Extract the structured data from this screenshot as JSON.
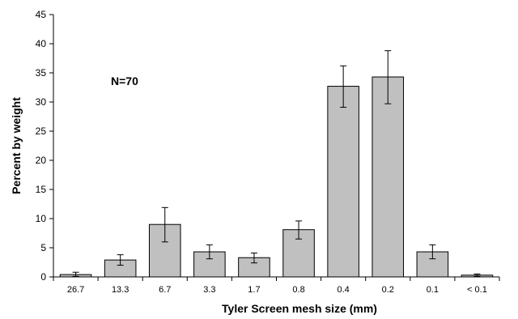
{
  "chart_data": {
    "type": "bar",
    "xlabel": "Tyler Screen mesh size (mm)",
    "ylabel": "Percent by weight",
    "annotation": "N=70",
    "ylim": [
      0,
      45
    ],
    "yticks": [
      0,
      5,
      10,
      15,
      20,
      25,
      30,
      35,
      40,
      45
    ],
    "grid": false,
    "legend": "none",
    "categories": [
      "26.7",
      "13.3",
      "6.7",
      "3.3",
      "1.7",
      "0.8",
      "0.4",
      "0.2",
      "0.1",
      "< 0.1"
    ],
    "values": [
      0.4,
      2.9,
      9.0,
      4.3,
      3.3,
      8.1,
      32.7,
      34.3,
      4.3,
      0.3
    ],
    "error_low": [
      0.1,
      2.0,
      6.0,
      3.1,
      2.4,
      6.5,
      29.1,
      29.7,
      3.1,
      0.1
    ],
    "error_high": [
      0.8,
      3.8,
      11.9,
      5.5,
      4.1,
      9.6,
      36.2,
      38.8,
      5.5,
      0.5
    ],
    "colors": {
      "bar_fill": "#c0c0c0",
      "bar_stroke": "#000000",
      "axis": "#000000"
    }
  }
}
